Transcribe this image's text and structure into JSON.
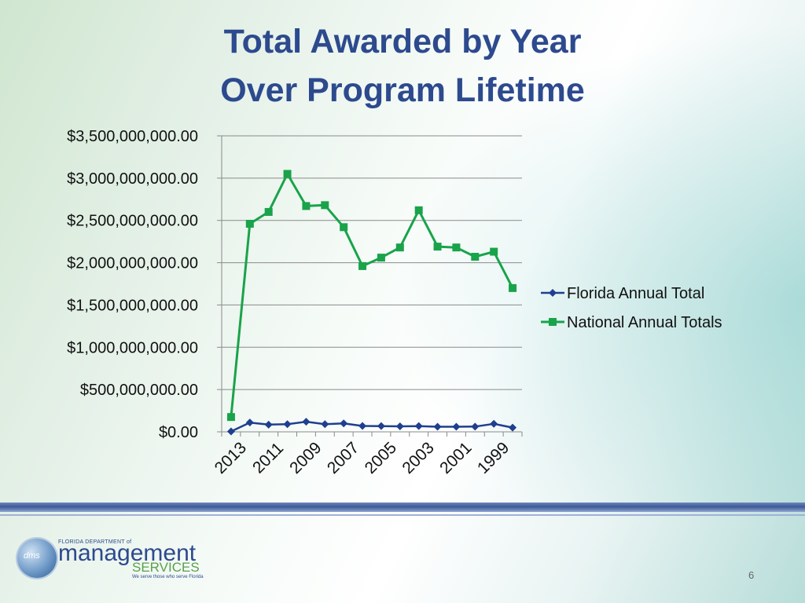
{
  "slide": {
    "title_line1": "Total Awarded by Year",
    "title_line2": "Over Program Lifetime",
    "page_number": "6"
  },
  "logo": {
    "small_text": "FLORIDA DEPARTMENT of",
    "main_text": "management",
    "services_text": "SERVICES",
    "tagline": "We serve those who serve Florida",
    "globe_text": "dms"
  },
  "chart_data": {
    "type": "line",
    "y_ticks": [
      "$3,500,000,000.00",
      "$3,000,000,000.00",
      "$2,500,000,000.00",
      "$2,000,000,000.00",
      "$1,500,000,000.00",
      "$1,000,000,000.00",
      "$500,000,000.00",
      "$0.00"
    ],
    "ylim": [
      0,
      3500000000
    ],
    "x_labels": [
      "2013",
      "2011",
      "2009",
      "2007",
      "2005",
      "2003",
      "2001",
      "1999"
    ],
    "x": [
      2013,
      2012,
      2011,
      2010,
      2009,
      2008,
      2007,
      2006,
      2005,
      2004,
      2003,
      2002,
      2001,
      2000,
      1999,
      1998
    ],
    "series": [
      {
        "name": "Florida Annual Total",
        "color": "#1f3f8f",
        "marker": "diamond",
        "values": [
          5000000,
          110000000,
          85000000,
          90000000,
          120000000,
          90000000,
          100000000,
          70000000,
          68000000,
          65000000,
          68000000,
          60000000,
          60000000,
          62000000,
          95000000,
          50000000
        ]
      },
      {
        "name": "National Annual Totals",
        "color": "#19a34a",
        "marker": "square",
        "values": [
          175000000,
          2460000000,
          2600000000,
          3050000000,
          2670000000,
          2680000000,
          2420000000,
          1960000000,
          2060000000,
          2180000000,
          2620000000,
          2190000000,
          2180000000,
          2070000000,
          2130000000,
          1700000000
        ]
      }
    ],
    "grid": true,
    "legend": "right"
  }
}
